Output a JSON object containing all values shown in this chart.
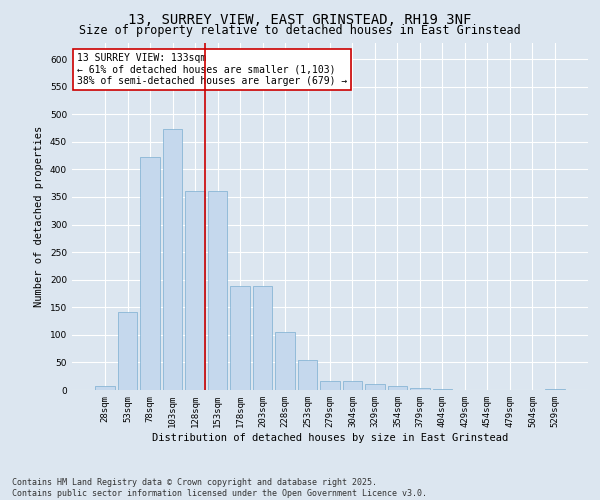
{
  "title_line1": "13, SURREY VIEW, EAST GRINSTEAD, RH19 3NF",
  "title_line2": "Size of property relative to detached houses in East Grinstead",
  "xlabel": "Distribution of detached houses by size in East Grinstead",
  "ylabel": "Number of detached properties",
  "categories": [
    "28sqm",
    "53sqm",
    "78sqm",
    "103sqm",
    "128sqm",
    "153sqm",
    "178sqm",
    "203sqm",
    "228sqm",
    "253sqm",
    "279sqm",
    "304sqm",
    "329sqm",
    "354sqm",
    "379sqm",
    "404sqm",
    "429sqm",
    "454sqm",
    "479sqm",
    "504sqm",
    "529sqm"
  ],
  "values": [
    8,
    142,
    422,
    474,
    360,
    360,
    188,
    188,
    105,
    54,
    16,
    16,
    10,
    8,
    3,
    2,
    0,
    0,
    0,
    0,
    1
  ],
  "bar_color": "#c5d8ed",
  "bar_edge_color": "#7aaed0",
  "vline_color": "#cc0000",
  "annotation_text": "13 SURREY VIEW: 133sqm\n← 61% of detached houses are smaller (1,103)\n38% of semi-detached houses are larger (679) →",
  "annotation_box_color": "#ffffff",
  "annotation_box_edge": "#cc0000",
  "ylim": [
    0,
    630
  ],
  "yticks": [
    0,
    50,
    100,
    150,
    200,
    250,
    300,
    350,
    400,
    450,
    500,
    550,
    600
  ],
  "background_color": "#dce6f0",
  "plot_background": "#dce6f0",
  "footer_line1": "Contains HM Land Registry data © Crown copyright and database right 2025.",
  "footer_line2": "Contains public sector information licensed under the Open Government Licence v3.0.",
  "title_fontsize": 10,
  "subtitle_fontsize": 8.5,
  "axis_label_fontsize": 7.5,
  "tick_fontsize": 6.5,
  "annotation_fontsize": 7,
  "footer_fontsize": 6
}
